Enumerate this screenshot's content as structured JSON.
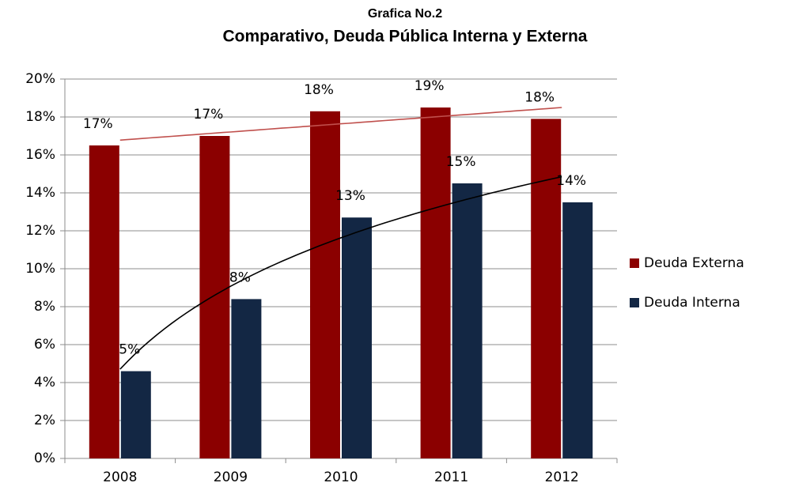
{
  "chart_data": {
    "type": "bar",
    "title": "Grafica No.2",
    "subtitle": "Comparativo, Deuda Pública Interna y Externa",
    "categories": [
      "2008",
      "2009",
      "2010",
      "2011",
      "2012"
    ],
    "series": [
      {
        "name": "Deuda Externa",
        "color": "#8b0000",
        "values": [
          16.5,
          17,
          18.3,
          18.5,
          17.9
        ],
        "value_labels": [
          "17%",
          "17%",
          "18%",
          "19%",
          "18%"
        ],
        "trendline": "linear",
        "trendline_color": "#c0504d"
      },
      {
        "name": "Deuda Interna",
        "color": "#132744",
        "values": [
          4.6,
          8.4,
          12.7,
          14.5,
          13.5
        ],
        "value_labels": [
          "5%",
          "8%",
          "13%",
          "15%",
          "14%"
        ],
        "trendline": "logarithmic",
        "trendline_color": "#000000"
      }
    ],
    "ylim": [
      0,
      20
    ],
    "yticks": [
      {
        "value": 0,
        "label": "0%"
      },
      {
        "value": 2,
        "label": "2%"
      },
      {
        "value": 4,
        "label": "4%"
      },
      {
        "value": 6,
        "label": "6%"
      },
      {
        "value": 8,
        "label": "8%"
      },
      {
        "value": 10,
        "label": "10%"
      },
      {
        "value": 12,
        "label": "12%"
      },
      {
        "value": 14,
        "label": "14%"
      },
      {
        "value": 16,
        "label": "16%"
      },
      {
        "value": 18,
        "label": "18%"
      },
      {
        "value": 20,
        "label": "20%"
      }
    ],
    "grid": true,
    "legend": "right"
  }
}
